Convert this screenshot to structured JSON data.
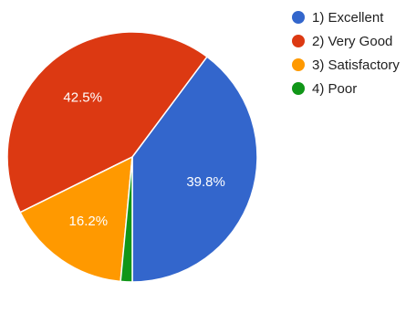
{
  "chart_data": {
    "type": "pie",
    "title": "",
    "legend_position": "top-right",
    "start_angle_deg": 90,
    "direction": "clockwise",
    "slices": [
      {
        "label": "1) Excellent",
        "value": 39.8,
        "value_label": "39.8%",
        "color": "#3366cc"
      },
      {
        "label": "2) Very Good",
        "value": 42.5,
        "value_label": "42.5%",
        "color": "#dc3912"
      },
      {
        "label": "3) Satisfactory",
        "value": 16.2,
        "value_label": "16.2%",
        "color": "#ff9900"
      },
      {
        "label": "4) Poor",
        "value": 1.5,
        "value_label": "",
        "color": "#109618"
      }
    ]
  }
}
